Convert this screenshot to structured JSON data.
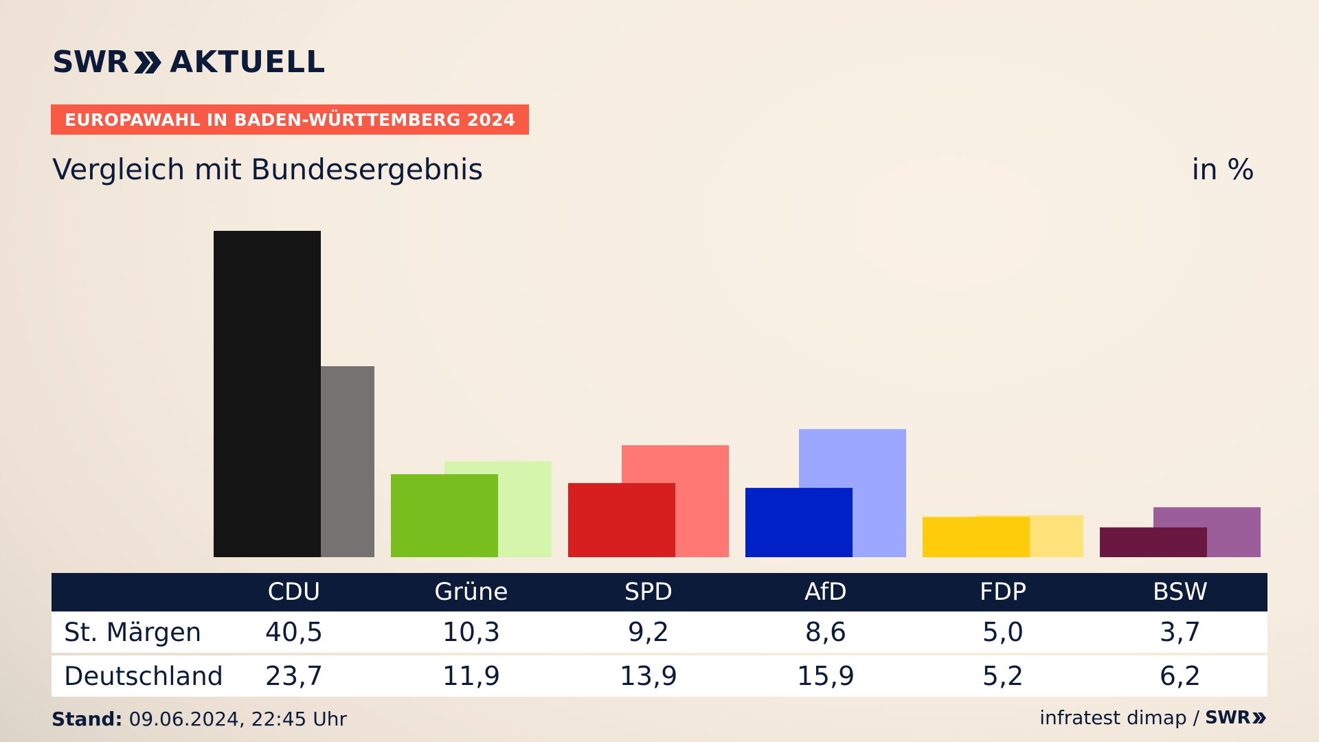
{
  "brand": {
    "swr": "SWR",
    "aktuell": "AKTUELL"
  },
  "badge": "EUROPAWAHL IN BADEN-WÜRTTEMBERG 2024",
  "subtitle": "Vergleich mit Bundesergebnis",
  "unit": "in %",
  "chart_data": {
    "type": "bar",
    "categories": [
      "CDU",
      "Grüne",
      "SPD",
      "AfD",
      "FDP",
      "BSW"
    ],
    "series": [
      {
        "name": "St. Märgen",
        "values": [
          40.5,
          10.3,
          9.2,
          8.6,
          5.0,
          3.7
        ]
      },
      {
        "name": "Deutschland",
        "values": [
          23.7,
          11.9,
          13.9,
          15.9,
          5.2,
          6.2
        ]
      }
    ],
    "ylim": [
      0,
      40.5
    ],
    "colors": {
      "primary": [
        "#141414",
        "#78be1e",
        "#d71f20",
        "#0021c6",
        "#ffcc0c",
        "#6b1841"
      ],
      "secondary": [
        "#747371",
        "#d5f5ad",
        "#ff7873",
        "#9ca8ff",
        "#ffe27a",
        "#9b5e9a"
      ]
    }
  },
  "table": {
    "row_labels": [
      "St. Märgen",
      "Deutschland"
    ],
    "values_display": [
      [
        "40,5",
        "10,3",
        "9,2",
        "8,6",
        "5,0",
        "3,7"
      ],
      [
        "23,7",
        "11,9",
        "13,9",
        "15,9",
        "5,2",
        "6,2"
      ]
    ]
  },
  "footer": {
    "stand_label": "Stand:",
    "stand_value": "09.06.2024, 22:45 Uhr",
    "source": "infratest dimap /",
    "source_brand": "SWR"
  }
}
